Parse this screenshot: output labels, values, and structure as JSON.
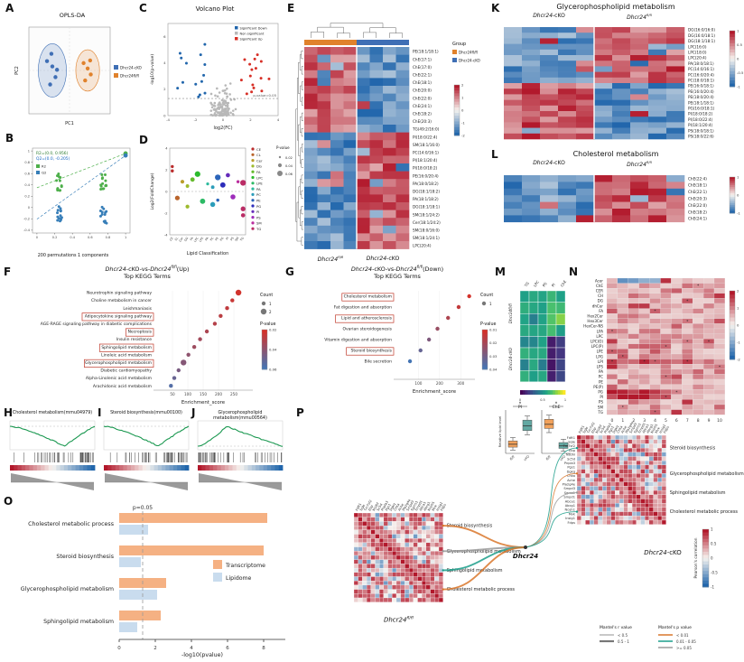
{
  "colors": {
    "flfl": "#e0822c",
    "cko": "#3f6fb5",
    "up_red": "#d73027",
    "down_blue": "#2166ac",
    "ns_gray": "#b8b8b8",
    "gsea_green": "#1a9850",
    "transcriptome": "#f5b183",
    "lipidome": "#c9dcee",
    "box_fl": "#f2a25c",
    "box_cko": "#62a8a2"
  },
  "panels": {
    "A": {
      "letter": "A",
      "title": "OPLS-DA",
      "xlabel": "PC1",
      "ylabel": "PC2",
      "legend": [
        {
          "label": "Dhcr24-cKO",
          "color": "#3f6fb5"
        },
        {
          "label": "Dhcr24fl/fl",
          "color": "#e0822c"
        }
      ],
      "xlim": [
        -1.3,
        1.3
      ],
      "ylim": [
        -1.3,
        1.3
      ],
      "groups": [
        {
          "name": "Dhcr24-cKO",
          "color": "#3f6fb5",
          "ellipse": [
            -0.55,
            0,
            0.45,
            0.8
          ],
          "points": [
            [
              -0.72,
              0.28
            ],
            [
              -0.55,
              0.12
            ],
            [
              -0.45,
              -0.2
            ],
            [
              -0.62,
              -0.42
            ],
            [
              -0.4,
              0.02
            ],
            [
              -0.58,
              0.5
            ]
          ]
        },
        {
          "name": "Dhcr24fl/fl",
          "color": "#e0822c",
          "ellipse": [
            0.58,
            0,
            0.38,
            0.62
          ],
          "points": [
            [
              0.45,
              0.22
            ],
            [
              0.58,
              0.06
            ],
            [
              0.68,
              -0.12
            ],
            [
              0.5,
              -0.3
            ],
            [
              0.66,
              0.3
            ]
          ]
        }
      ]
    },
    "B": {
      "letter": "B",
      "annotation1": "R2=(0.0, 0.956)",
      "annotation2": "Q2=(0.0, -0.205)",
      "xlabel": "200 permutations 1 components",
      "legend": [
        {
          "label": "R2",
          "color": "#4daf4a"
        },
        {
          "label": "Q2",
          "color": "#377eb8"
        }
      ],
      "clusters_x": [
        0.25,
        0.75
      ],
      "r2_model": 0.956,
      "q2_model": 0.92,
      "r2_intercept": 0.35,
      "q2_intercept": -0.205,
      "yticks": [
        -0.4,
        -0.2,
        0,
        0.2,
        0.4,
        0.6,
        0.8,
        1
      ],
      "xticks": [
        0,
        0.2,
        0.4,
        0.6,
        0.8,
        1
      ]
    },
    "C": {
      "letter": "C",
      "title": "Volcano Plot",
      "xlabel": "log2(FC)",
      "ylabel": "-log10(p-value)",
      "pline_label": "p-value=0.05",
      "pline_y": 1.3,
      "legend": [
        {
          "label": "Significant Down",
          "color": "#2166ac"
        },
        {
          "label": "Non significant",
          "color": "#b8b8b8"
        },
        {
          "label": "Significant Up",
          "color": "#d73027"
        }
      ],
      "counts": {
        "down": 14,
        "ns": 130,
        "up": 16
      },
      "xticks": [
        -4,
        -2,
        0,
        2,
        4
      ],
      "yticks": [
        0,
        2,
        4,
        6
      ]
    },
    "D": {
      "letter": "D",
      "xlabel": "Lipid Classification",
      "ylabel": "Log2(FoldChange)",
      "classes": [
        "CE",
        "CL",
        "Cer",
        "DG",
        "FA",
        "LPC",
        "LPE",
        "PA",
        "PC",
        "PE",
        "PG",
        "PI",
        "PS",
        "SM",
        "TG"
      ],
      "points": [
        [
          0,
          1.9
        ],
        [
          0,
          2.3
        ],
        [
          1,
          -0.6
        ],
        [
          2,
          0.9
        ],
        [
          3,
          -1.4
        ],
        [
          3,
          0.5
        ],
        [
          4,
          1.1
        ],
        [
          5,
          1.6
        ],
        [
          6,
          -0.9
        ],
        [
          7,
          0.7
        ],
        [
          8,
          -1.2
        ],
        [
          8,
          0.4
        ],
        [
          9,
          -0.8
        ],
        [
          9,
          1.3
        ],
        [
          10,
          0.6
        ],
        [
          11,
          1.5
        ],
        [
          12,
          -0.5
        ],
        [
          13,
          0.9
        ],
        [
          14,
          -2.2
        ],
        [
          14,
          -1.6
        ],
        [
          14,
          0.8
        ]
      ],
      "pvalue_legend_title": "P-value",
      "pvalue_legend": [
        0.02,
        0.04,
        0.06
      ],
      "yticks": [
        -4,
        -2,
        0,
        2,
        4
      ]
    },
    "E": {
      "letter": "E",
      "g1a": "Dhcr24",
      "g1sup": "fl/fl",
      "g2a": "Dhcr24",
      "g2b": "-cKO",
      "legend_title": "Group",
      "legend": [
        {
          "label": "Dhcr24fl/fl",
          "color": "#e0822c"
        },
        {
          "label": "Dhcr24-cKO",
          "color": "#3f6fb5"
        }
      ],
      "colorbar_ticks": [
        2,
        1,
        0,
        -1,
        -2
      ],
      "rows": [
        "PE(18:1/18:1)",
        "ChE(17:1)",
        "ChE(17:0)",
        "ChE(22:1)",
        "ChE(18:1)",
        "ChE(20:0)",
        "ChE(22:0)",
        "ChE(24:1)",
        "ChE(18:2)",
        "ChE(20:3)",
        "TG(49:2/16:0)",
        "PI(18:0/22:4)",
        "SM(18:1/16:0)",
        "PC(14:0/16:1)",
        "PI(18:1/20:4)",
        "PI(18:0/18:2)",
        "PE(16:0/20:4)",
        "PA(18:0/18:2)",
        "DG(18:1/18:2)",
        "PA(18:1/18:2)",
        "DG(18:1/18:1)",
        "SM(18:1/24:2)",
        "Cer(18:1/24:2)",
        "SM(18:0/16:0)",
        "SM(18:1/24:1)",
        "LPC(20:4)"
      ]
    },
    "F": {
      "letter": "F",
      "t1": "Dhcr24",
      "t2": "-cKO-vs-",
      "t3": "Dhcr24",
      "t4": "fl/fl",
      "t5": "(Up)",
      "subtitle": "Top KEGG Terms",
      "xlabel": "Enrichment_score",
      "xticks": [
        50,
        100,
        150,
        200,
        250
      ],
      "xmax": 300,
      "count_legend": {
        "title": "Count",
        "values": [
          1,
          2
        ]
      },
      "pvalue_legend": {
        "title": "P-value",
        "ticks": [
          0.02,
          0.04,
          0.06
        ],
        "pmin": 0.01,
        "pmax": 0.06
      },
      "terms": [
        {
          "name": "Neurotrophin signaling pathway",
          "score": 265,
          "count": 2,
          "p": 0.012,
          "boxed": false
        },
        {
          "name": "Choline metabolism in cancer",
          "score": 245,
          "count": 1,
          "p": 0.015,
          "boxed": false
        },
        {
          "name": "Leishmaniasis",
          "score": 228,
          "count": 1,
          "p": 0.018,
          "boxed": false
        },
        {
          "name": "Adipocytokine signaling pathway",
          "score": 207,
          "count": 1,
          "p": 0.02,
          "boxed": true
        },
        {
          "name": "AGE-RAGE signaling pathway in diabetic complications",
          "score": 188,
          "count": 1,
          "p": 0.022,
          "boxed": false
        },
        {
          "name": "Necroptosis",
          "score": 162,
          "count": 1,
          "p": 0.025,
          "boxed": true
        },
        {
          "name": "Insulin resistance",
          "score": 140,
          "count": 1,
          "p": 0.028,
          "boxed": false
        },
        {
          "name": "Sphingolipid metabolism",
          "score": 121,
          "count": 1,
          "p": 0.03,
          "boxed": true
        },
        {
          "name": "Linoleic acid metabolism",
          "score": 102,
          "count": 1,
          "p": 0.035,
          "boxed": false
        },
        {
          "name": "Glycerophospholipid metabolism",
          "score": 86,
          "count": 2,
          "p": 0.038,
          "boxed": true
        },
        {
          "name": "Diabetic cardiomyopathy",
          "score": 70,
          "count": 1,
          "p": 0.042,
          "boxed": false
        },
        {
          "name": "Alpha-Linolenic acid metabolism",
          "score": 56,
          "count": 1,
          "p": 0.048,
          "boxed": false
        },
        {
          "name": "Arachidonic acid metabolism",
          "score": 45,
          "count": 1,
          "p": 0.055,
          "boxed": false
        }
      ]
    },
    "G": {
      "letter": "G",
      "t1": "Dhcr24",
      "t2": "-cKO-vs-",
      "t3": "Dhcr24",
      "t4": "fl/fl",
      "t5": "(Down)",
      "subtitle": "Top KEGG Terms",
      "xlabel": "Enrichment_score",
      "xticks": [
        100,
        200,
        300
      ],
      "xmax": 350,
      "count_legend": {
        "title": "Count",
        "values": [
          1
        ]
      },
      "pvalue_legend": {
        "title": "P-value",
        "ticks": [
          0.01,
          0.02,
          0.03,
          0.04
        ],
        "pmin": 0.005,
        "pmax": 0.04
      },
      "terms": [
        {
          "name": "Cholesterol metabolism",
          "score": 340,
          "count": 1,
          "p": 0.006,
          "boxed": true
        },
        {
          "name": "Fat digestion and absorption",
          "score": 290,
          "count": 1,
          "p": 0.01,
          "boxed": false
        },
        {
          "name": "Lipid and atherosclerosis",
          "score": 240,
          "count": 1,
          "p": 0.015,
          "boxed": true
        },
        {
          "name": "Ovarian steroidogenesis",
          "score": 190,
          "count": 1,
          "p": 0.02,
          "boxed": false
        },
        {
          "name": "Vitamin digestion and absorption",
          "score": 150,
          "count": 1,
          "p": 0.026,
          "boxed": false
        },
        {
          "name": "Steroid biosynthesis",
          "score": 110,
          "count": 1,
          "p": 0.032,
          "boxed": true
        },
        {
          "name": "Bile secretion",
          "score": 60,
          "count": 1,
          "p": 0.04,
          "boxed": false
        }
      ]
    },
    "H": {
      "letter": "H",
      "title": "Cholesterol metabolism(mmu04979)",
      "shape": "neg"
    },
    "I": {
      "letter": "I",
      "title": "Steroid biosynthesis(mmu00100)",
      "shape": "neg"
    },
    "J": {
      "letter": "J",
      "title": "Glycerophospholipid metabolism(mmu00564)",
      "shape": "pos"
    },
    "K": {
      "letter": "K",
      "title": "Glycerophospholipid metabolism",
      "h1a": "Dhcr24",
      "h1b": "-cKO",
      "h2a": "Dhcr24",
      "h2sup": "fl/fl",
      "colorbar_ticks": [
        1,
        0.5,
        0,
        -0.5,
        -1
      ],
      "rows": [
        "DG(16:0/16:0)",
        "DG(16:0/18:1)",
        "DG(18:1/18:1)",
        "LPC(16:0)",
        "LPC(18:0)",
        "LPC(20:4)",
        "PA(18:0/18:1)",
        "PC(14:0/16:1)",
        "PC(16:0/20:4)",
        "PC(18:0/18:1)",
        "PE(16:0/18:1)",
        "PE(16:0/20:4)",
        "PE(18:0/20:4)",
        "PE(18:1/18:1)",
        "PG(16:0/18:1)",
        "PI(18:0/18:2)",
        "PI(18:0/22:4)",
        "PI(18:1/20:4)",
        "PS(18:0/18:1)",
        "PS(18:0/22:6)"
      ]
    },
    "L": {
      "letter": "L",
      "title": "Cholesterol metabolism",
      "h1a": "Dhcr24",
      "h1b": "-cKO",
      "h2a": "Dhcr24",
      "h2sup": "fl/fl",
      "colorbar_ticks": [
        1,
        0,
        -1
      ],
      "rows": [
        "ChE(22:4)",
        "ChE(18:1)",
        "ChE(22:1)",
        "ChE(20:3)",
        "ChE(22:0)",
        "ChE(18:2)",
        "ChE(24:1)"
      ]
    },
    "M": {
      "letter": "M",
      "columns": [
        "TG",
        "LPC",
        "PS",
        "PI",
        "ChE"
      ],
      "row_groups": [
        "Dhcr24fl/fl",
        "Dhcr24-cKO"
      ],
      "rows_per_group": 4,
      "colorbar_ticks": [
        0,
        0.5,
        1
      ],
      "ylabel": "Relative lipid level",
      "star": "*",
      "boxplots": [
        {
          "title": "PI",
          "xlabels": [
            "fl/fl",
            "cKO"
          ]
        },
        {
          "title": "ChE",
          "xlabels": [
            "fl/fl",
            "cKO"
          ]
        }
      ]
    },
    "N": {
      "letter": "N",
      "star": "*",
      "columns": [
        "0",
        "1",
        "2",
        "3",
        "4",
        "5",
        "6",
        "7",
        "8",
        "9",
        "10"
      ],
      "colorbar_ticks": [
        2,
        1,
        0,
        -1,
        -2
      ],
      "rows": [
        "Acer",
        "ChE",
        "CER",
        "CH",
        "DG",
        "dhCer",
        "FA",
        "Hex2Cer",
        "Hex3Cer",
        "HexCer-NS",
        "LPA",
        "LPC",
        "LPC(O)",
        "LPC(P)",
        "LPE",
        "LPG",
        "LPI",
        "LPS",
        "PA",
        "PC",
        "PE",
        "PE(P)",
        "PG",
        "PI",
        "PS",
        "SM",
        "TG"
      ]
    },
    "O": {
      "letter": "O",
      "annotation": "p=0.05",
      "xlabel": "-log10(pvalue)",
      "xticks": [
        0,
        2,
        4,
        6,
        8
      ],
      "pline": 1.3,
      "categories": [
        "Cholesterol metabolic process",
        "Steroid biosynthesis",
        "Glycerophospholipid metabolism",
        "Sphingolipid metabolism"
      ],
      "series": [
        {
          "name": "Transcriptome",
          "color": "#f5b183",
          "values": [
            8.2,
            8.0,
            2.6,
            2.3
          ]
        },
        {
          "name": "Lipidome",
          "color": "#c9dcee",
          "values": [
            1.6,
            1.2,
            2.1,
            1.0
          ]
        }
      ]
    },
    "P": {
      "letter": "P",
      "center_gene": "Dhcr24",
      "left_label_base": "Dhcr24",
      "left_label_sup": "fl/fl",
      "right_label_a": "Dhcr24",
      "right_label_b": "-cKO",
      "genes": [
        "Fdft1",
        "Sqle",
        "Tm7sf2",
        "Ebp",
        "Nsdhl",
        "Sc5d",
        "Pnpla3",
        "Pgs1",
        "Dgkq",
        "Chka",
        "Ache",
        "Pla2g4e",
        "Smpd3",
        "Sgms1",
        "Smpd1",
        "Abca1",
        "Abcg1",
        "Nceh1",
        "Mvk",
        "Insig1",
        "Fdps"
      ],
      "categories": [
        {
          "name": "Steroid biosynthesis",
          "from": 0,
          "to": 5
        },
        {
          "name": "Glycerophospholipid metabolism",
          "from": 6,
          "to": 11
        },
        {
          "name": "Sphingolipid metabolism",
          "from": 12,
          "to": 14
        },
        {
          "name": "Cholesterol metabolic process",
          "from": 15,
          "to": 20
        }
      ],
      "pearson_legend": {
        "title": "Pearson's correlation",
        "ticks": [
          1,
          0.5,
          0,
          -0.5,
          -1
        ]
      },
      "mantel_r_legend": {
        "title": "Mantel's r value",
        "entries": [
          "< 0.5",
          "0.5 - 1"
        ]
      },
      "mantel_p_legend": {
        "title": "Mantel's p value",
        "entries": [
          {
            "label": "< 0.01",
            "color": "#d9772c"
          },
          {
            "label": "0.01 - 0.05",
            "color": "#1b9e8a"
          },
          {
            "label": ">= 0.05",
            "color": "#9a9a9a"
          }
        ]
      }
    }
  },
  "chart_data": [
    {
      "type": "scatter",
      "panel": "F",
      "title": "Dhcr24-cKO-vs-Dhcr24fl/fl(Up) Top KEGG Terms",
      "xlabel": "Enrichment_score",
      "categories": [
        "Neurotrophin signaling pathway",
        "Choline metabolism in cancer",
        "Leishmaniasis",
        "Adipocytokine signaling pathway",
        "AGE-RAGE signaling pathway in diabetic complications",
        "Necroptosis",
        "Insulin resistance",
        "Sphingolipid metabolism",
        "Linoleic acid metabolism",
        "Glycerophospholipid metabolism",
        "Diabetic cardiomyopathy",
        "Alpha-Linolenic acid metabolism",
        "Arachidonic acid metabolism"
      ],
      "values": [
        265,
        245,
        228,
        207,
        188,
        162,
        140,
        121,
        102,
        86,
        70,
        56,
        45
      ],
      "xlim": [
        0,
        300
      ]
    },
    {
      "type": "scatter",
      "panel": "G",
      "title": "Dhcr24-cKO-vs-Dhcr24fl/fl(Down) Top KEGG Terms",
      "xlabel": "Enrichment_score",
      "categories": [
        "Cholesterol metabolism",
        "Fat digestion and absorption",
        "Lipid and atherosclerosis",
        "Ovarian steroidogenesis",
        "Vitamin digestion and absorption",
        "Steroid biosynthesis",
        "Bile secretion"
      ],
      "values": [
        340,
        290,
        240,
        190,
        150,
        110,
        60
      ],
      "xlim": [
        0,
        350
      ]
    },
    {
      "type": "bar",
      "panel": "O",
      "xlabel": "-log10(pvalue)",
      "annotation": "p=0.05",
      "categories": [
        "Cholesterol metabolic process",
        "Steroid biosynthesis",
        "Glycerophospholipid metabolism",
        "Sphingolipid metabolism"
      ],
      "series": [
        {
          "name": "Transcriptome",
          "values": [
            8.2,
            8.0,
            2.6,
            2.3
          ]
        },
        {
          "name": "Lipidome",
          "values": [
            1.6,
            1.2,
            2.1,
            1.0
          ]
        }
      ],
      "xlim": [
        0,
        9
      ]
    }
  ]
}
